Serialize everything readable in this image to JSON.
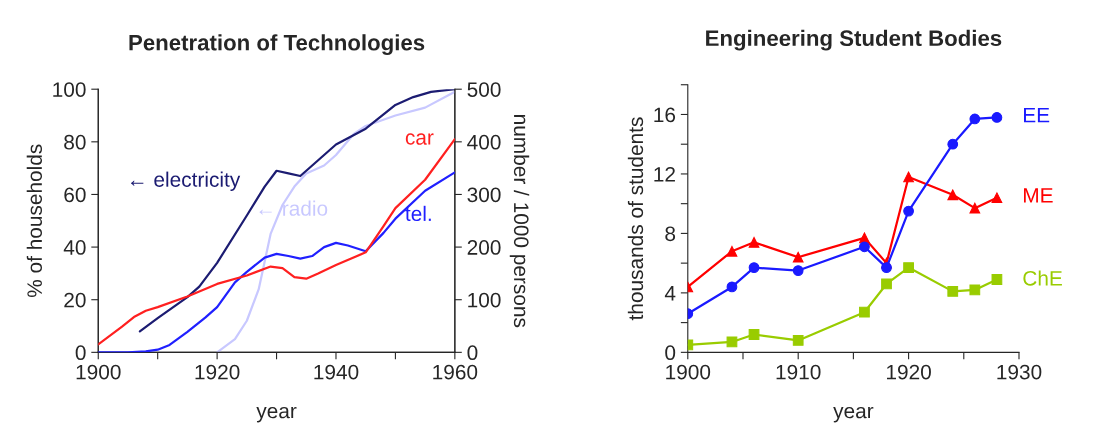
{
  "chart_data": [
    {
      "type": "line",
      "title": "Penetration of Technologies",
      "xlabel": "year",
      "ylabel": "% of households",
      "y2label": "number / 1000 persons",
      "xlim": [
        1900,
        1960
      ],
      "xticks": [
        1900,
        {
          "value": 1910,
          "label": null
        },
        1920,
        {
          "value": 1930,
          "label": null
        },
        1940,
        {
          "value": 1950,
          "label": null
        },
        1960
      ],
      "ylim": [
        0,
        100
      ],
      "yticks": [
        0,
        20,
        40,
        60,
        80,
        100
      ],
      "y2lim": [
        0,
        500
      ],
      "y2ticks": [
        0,
        100,
        200,
        300,
        400,
        500
      ],
      "grid": false,
      "legend": false,
      "marker": "none",
      "series": [
        {
          "name": "← electricity",
          "color": "#1c1c72",
          "x": [
            1907,
            1910,
            1915,
            1917,
            1920,
            1925,
            1928,
            1930,
            1932,
            1934,
            1936,
            1940,
            1945,
            1950,
            1953,
            1956,
            1960
          ],
          "values": [
            8,
            13,
            21,
            25,
            34,
            52,
            63,
            69,
            68,
            67,
            71,
            79,
            85,
            94,
            97,
            99,
            100
          ]
        },
        {
          "name": "← radio",
          "color": "#c8c8ff",
          "x": [
            1920,
            1923,
            1925,
            1927,
            1929,
            1931,
            1933,
            1935,
            1938,
            1940,
            1943,
            1945,
            1950,
            1955,
            1960
          ],
          "values": [
            0,
            5,
            12,
            24,
            45,
            56,
            63,
            68,
            71,
            75,
            83,
            86,
            90,
            93,
            99
          ]
        },
        {
          "name": "car",
          "color": "#ff2020",
          "axis": "y2",
          "x": [
            1900,
            1904,
            1906,
            1908,
            1910,
            1915,
            1920,
            1925,
            1929,
            1931,
            1933,
            1935,
            1937,
            1940,
            1945,
            1948,
            1950,
            1955,
            1960
          ],
          "values": [
            15,
            49,
            67,
            79,
            86,
            106,
            130,
            146,
            163,
            160,
            143,
            140,
            150,
            166,
            190,
            240,
            274,
            328,
            405
          ]
        },
        {
          "name": "tel.",
          "color": "#2020ff",
          "axis": "y2",
          "x": [
            1900,
            1905,
            1908,
            1910,
            1912,
            1915,
            1918,
            1920,
            1923,
            1925,
            1928,
            1930,
            1932,
            1934,
            1936,
            1938,
            1940,
            1942,
            1945,
            1948,
            1950,
            1955,
            1960
          ],
          "values": [
            0,
            0,
            2,
            5,
            14,
            39,
            66,
            86,
            133,
            153,
            180,
            187,
            183,
            178,
            183,
            200,
            208,
            203,
            192,
            227,
            254,
            307,
            342
          ]
        }
      ]
    },
    {
      "type": "line",
      "title": "Engineering Student Bodies",
      "xlabel": "year",
      "ylabel": "thousands of students",
      "xlim": [
        1900,
        1930
      ],
      "xticks": [
        1900,
        {
          "value": 1905,
          "label": null
        },
        1910,
        {
          "value": 1915,
          "label": null
        },
        1920,
        {
          "value": 1925,
          "label": null
        },
        1930
      ],
      "ylim": [
        0,
        18
      ],
      "yticks": [
        0,
        {
          "value": 2,
          "label": null
        },
        4,
        {
          "value": 6,
          "label": null
        },
        8,
        {
          "value": 10,
          "label": null
        },
        12,
        {
          "value": 14,
          "label": null
        },
        16,
        {
          "value": 18,
          "label": null
        }
      ],
      "grid": false,
      "legend": false,
      "x": [
        1900,
        1904,
        1906,
        1910,
        1916,
        1918,
        1920,
        1924,
        1926,
        1928
      ],
      "series": [
        {
          "name": "EE",
          "color": "#1a1aff",
          "marker": "circle",
          "values": [
            2.6,
            4.4,
            5.7,
            5.5,
            7.1,
            5.7,
            9.5,
            14.0,
            15.7,
            15.8
          ]
        },
        {
          "name": "ME",
          "color": "#ff0000",
          "marker": "triangle",
          "values": [
            4.4,
            6.8,
            7.4,
            6.4,
            7.7,
            6.0,
            11.8,
            10.6,
            9.7,
            10.4
          ]
        },
        {
          "name": "ChE",
          "color": "#99cc00",
          "marker": "square",
          "values": [
            0.5,
            0.7,
            1.2,
            0.8,
            2.7,
            4.6,
            5.7,
            4.1,
            4.2,
            4.9
          ]
        }
      ]
    }
  ]
}
